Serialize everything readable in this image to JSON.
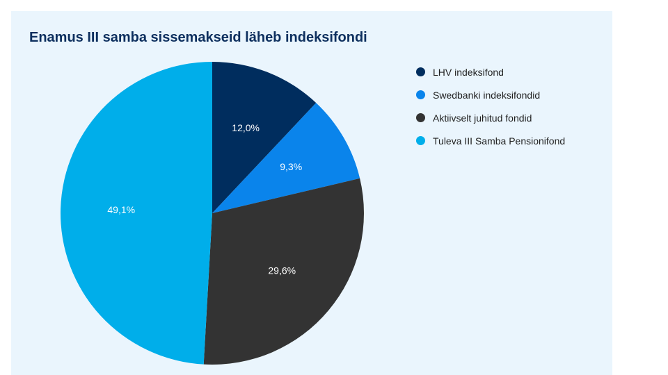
{
  "chart_data": {
    "type": "pie",
    "title": "Enamus III samba sissemakseid läheb indeksifondi",
    "legend_position": "right",
    "slices": [
      {
        "label": "LHV indeksifond",
        "value": 12.0,
        "value_label": "12,0%",
        "color": "#002D5E"
      },
      {
        "label": "Swedbanki indeksifondid",
        "value": 9.3,
        "value_label": "9,3%",
        "color": "#0A84EB"
      },
      {
        "label": "Aktiivselt juhitud fondid",
        "value": 29.6,
        "value_label": "29,6%",
        "color": "#333333"
      },
      {
        "label": "Tuleva III Samba Pensionifond",
        "value": 49.1,
        "value_label": "49,1%",
        "color": "#00AEEA"
      }
    ]
  },
  "colors": {
    "background": "#EAF5FD",
    "title": "#0D2F5E"
  }
}
